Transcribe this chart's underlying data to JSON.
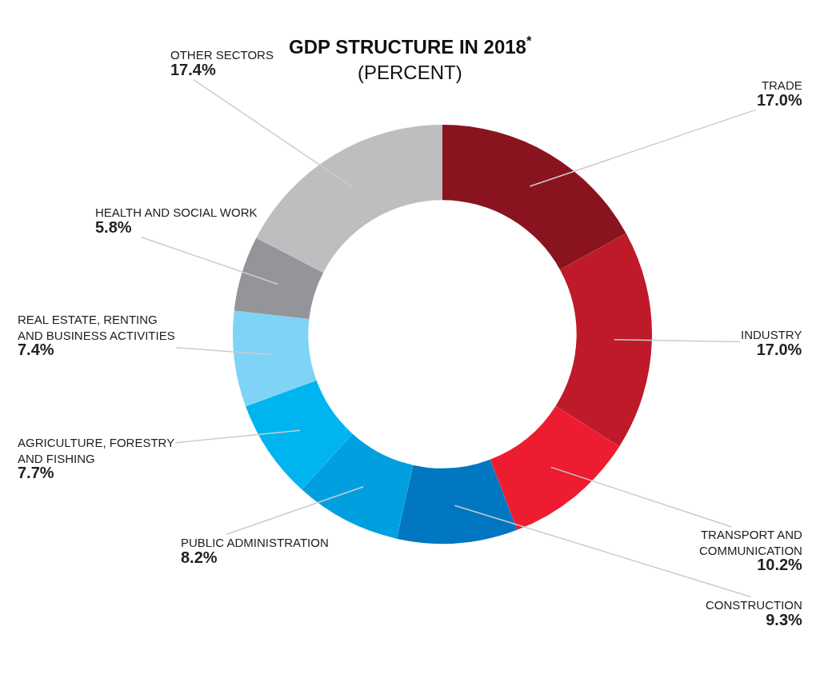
{
  "chart_data": {
    "type": "donut",
    "title": "GDP STRUCTURE IN 2018$^{*}$",
    "subtitle": "(PERCENT)",
    "categories": [
      "TRADE",
      "INDUSTRY",
      "TRANSPORT AND COMMUNICATION",
      "CONSTRUCTION",
      "PUBLIC ADMINISTRATION",
      "AGRICULTURE, FORESTRY AND FISHING",
      "REAL ESTATE, RENTING AND BUSINESS ACTIVITIES",
      "HEALTH AND SOCIAL WORK",
      "OTHER SECTORS"
    ],
    "values": [
      17.0,
      17.0,
      10.2,
      9.3,
      8.2,
      7.7,
      7.4,
      5.8,
      17.4
    ],
    "value_labels": [
      "17.0%",
      "17.0%",
      "10.2%",
      "9.3%",
      "8.2%",
      "7.7%",
      "7.4%",
      "5.8%",
      "17.4%"
    ],
    "colors": [
      "#8a1320",
      "#be1a2a",
      "#ed1c30",
      "#0077c0",
      "#00a0e0",
      "#00b5ef",
      "#7ed3f7",
      "#939598",
      "#bcbec0"
    ],
    "legend": false
  }
}
